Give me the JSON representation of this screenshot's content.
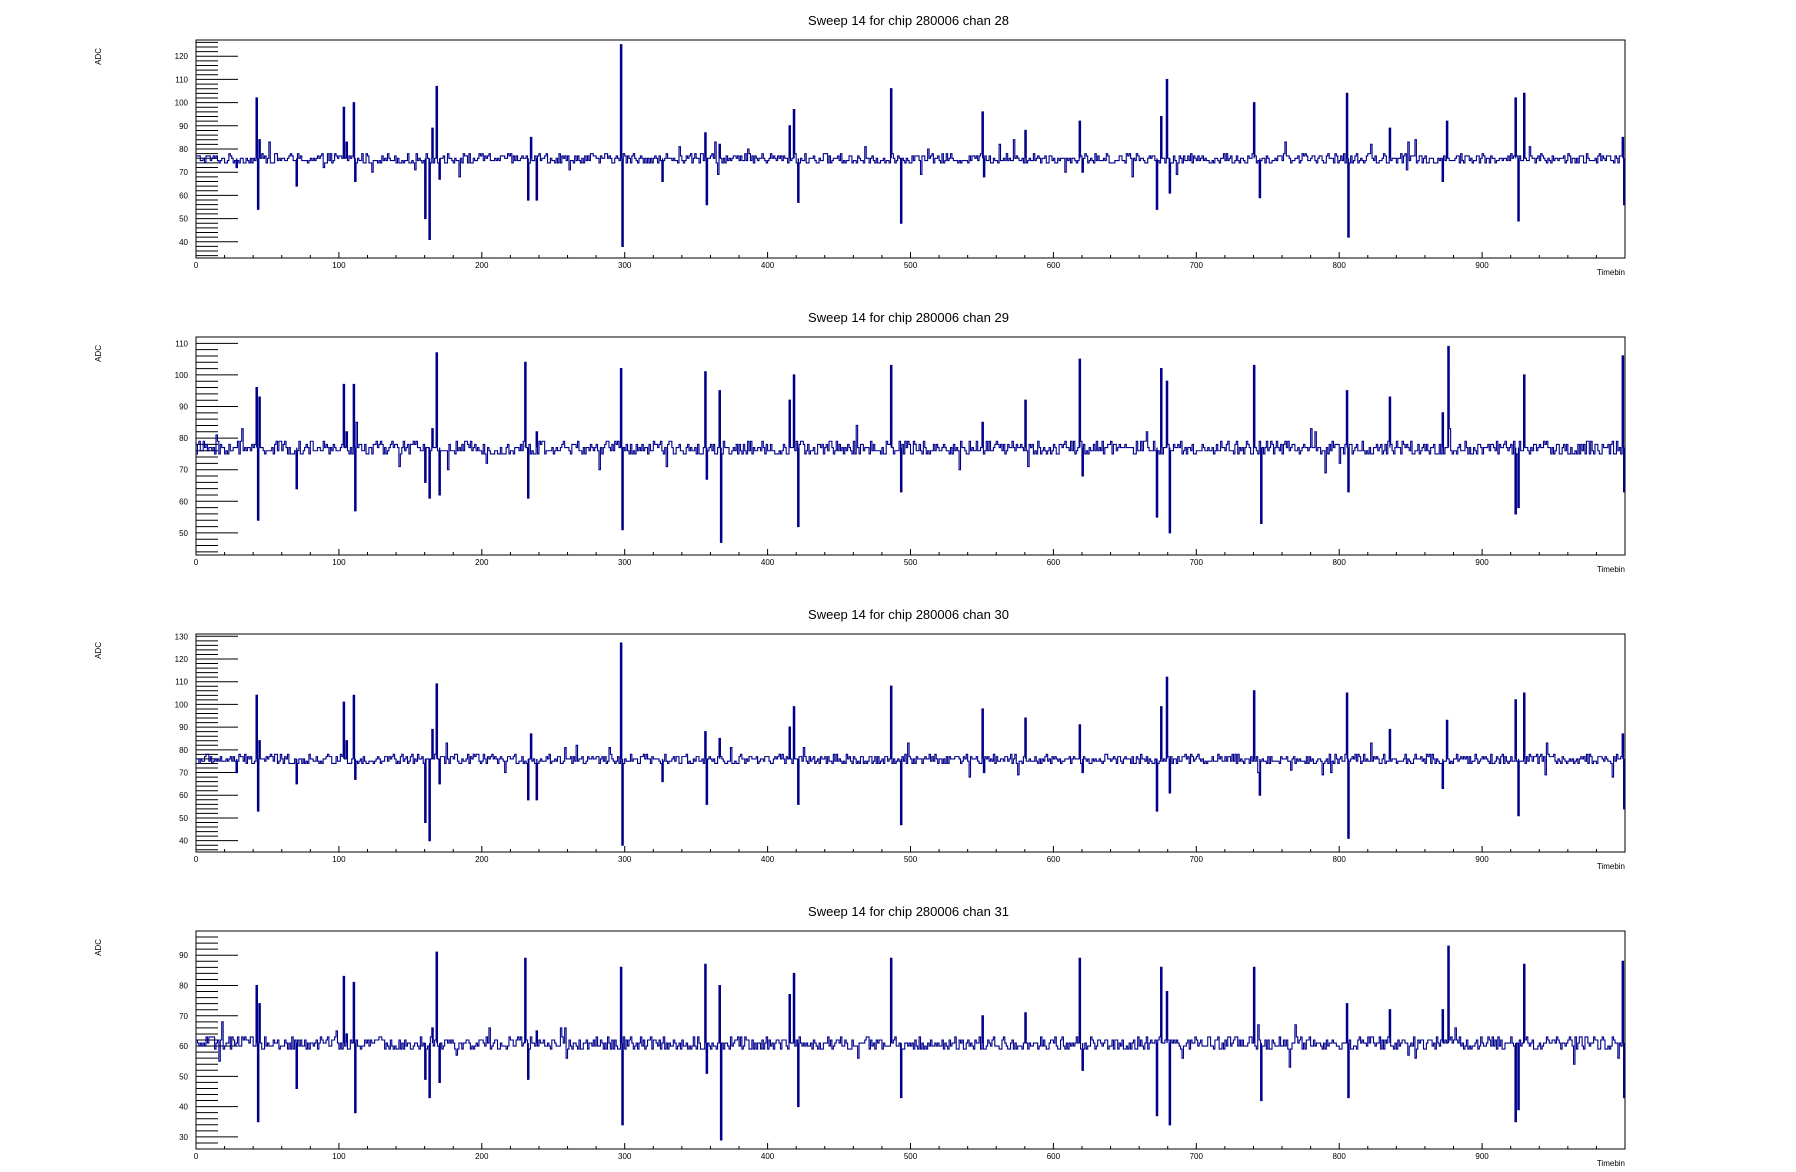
{
  "colors": {
    "trace": "#00008b",
    "frame": "#000000",
    "background": "#ffffff"
  },
  "chart_data": [
    {
      "type": "line",
      "title": "Sweep 14 for chip 280006 chan 28",
      "xlabel": "Timebin",
      "ylabel": "ADC",
      "xlim": [
        0,
        1000
      ],
      "ylim": [
        33,
        127
      ],
      "x_ticks": [
        0,
        100,
        200,
        300,
        400,
        500,
        600,
        700,
        800,
        900
      ],
      "y_ticks": [
        40,
        50,
        60,
        70,
        80,
        90,
        100,
        110,
        120
      ],
      "grid": false,
      "series": [
        {
          "baseline": 76,
          "spikes": [
            [
              28,
              72
            ],
            [
              42,
              102
            ],
            [
              43,
              54
            ],
            [
              44,
              84
            ],
            [
              70,
              64
            ],
            [
              103,
              98
            ],
            [
              105,
              83
            ],
            [
              110,
              100
            ],
            [
              111,
              66
            ],
            [
              160,
              50
            ],
            [
              163,
              41
            ],
            [
              165,
              89
            ],
            [
              168,
              107
            ],
            [
              170,
              67
            ],
            [
              232,
              58
            ],
            [
              234,
              85
            ],
            [
              238,
              58
            ],
            [
              297,
              125
            ],
            [
              298,
              38
            ],
            [
              326,
              66
            ],
            [
              356,
              87
            ],
            [
              357,
              56
            ],
            [
              366,
              82
            ],
            [
              415,
              90
            ],
            [
              418,
              97
            ],
            [
              421,
              57
            ],
            [
              486,
              106
            ],
            [
              493,
              48
            ],
            [
              550,
              96
            ],
            [
              551,
              68
            ],
            [
              580,
              88
            ],
            [
              618,
              92
            ],
            [
              620,
              70
            ],
            [
              672,
              54
            ],
            [
              675,
              94
            ],
            [
              679,
              110
            ],
            [
              681,
              61
            ],
            [
              740,
              100
            ],
            [
              744,
              59
            ],
            [
              805,
              104
            ],
            [
              806,
              42
            ],
            [
              835,
              89
            ],
            [
              872,
              66
            ],
            [
              875,
              92
            ],
            [
              923,
              102
            ],
            [
              925,
              49
            ],
            [
              929,
              104
            ],
            [
              998,
              85
            ],
            [
              999,
              56
            ]
          ]
        }
      ]
    },
    {
      "type": "line",
      "title": "Sweep 14 for chip 280006 chan 29",
      "xlabel": "Timebin",
      "ylabel": "ADC",
      "xlim": [
        0,
        1000
      ],
      "ylim": [
        43,
        112
      ],
      "x_ticks": [
        0,
        100,
        200,
        300,
        400,
        500,
        600,
        700,
        800,
        900
      ],
      "y_ticks": [
        50,
        60,
        70,
        80,
        90,
        100,
        110
      ],
      "grid": false,
      "series": [
        {
          "baseline": 77,
          "spikes": [
            [
              42,
              96
            ],
            [
              43,
              54
            ],
            [
              44,
              93
            ],
            [
              70,
              64
            ],
            [
              103,
              97
            ],
            [
              105,
              82
            ],
            [
              110,
              97
            ],
            [
              111,
              57
            ],
            [
              160,
              66
            ],
            [
              163,
              61
            ],
            [
              165,
              83
            ],
            [
              168,
              107
            ],
            [
              170,
              62
            ],
            [
              230,
              104
            ],
            [
              232,
              61
            ],
            [
              238,
              82
            ],
            [
              297,
              102
            ],
            [
              298,
              51
            ],
            [
              356,
              101
            ],
            [
              357,
              67
            ],
            [
              366,
              95
            ],
            [
              367,
              47
            ],
            [
              415,
              92
            ],
            [
              418,
              100
            ],
            [
              421,
              52
            ],
            [
              486,
              103
            ],
            [
              493,
              63
            ],
            [
              550,
              85
            ],
            [
              580,
              92
            ],
            [
              618,
              105
            ],
            [
              620,
              68
            ],
            [
              672,
              55
            ],
            [
              675,
              102
            ],
            [
              679,
              98
            ],
            [
              681,
              50
            ],
            [
              740,
              103
            ],
            [
              745,
              53
            ],
            [
              805,
              95
            ],
            [
              806,
              63
            ],
            [
              835,
              93
            ],
            [
              872,
              88
            ],
            [
              876,
              109
            ],
            [
              923,
              56
            ],
            [
              925,
              58
            ],
            [
              929,
              100
            ],
            [
              998,
              106
            ],
            [
              999,
              63
            ]
          ]
        }
      ]
    },
    {
      "type": "line",
      "title": "Sweep 14 for chip 280006 chan 30",
      "xlabel": "Timebin",
      "ylabel": "ADC",
      "xlim": [
        0,
        1000
      ],
      "ylim": [
        35,
        131
      ],
      "x_ticks": [
        0,
        100,
        200,
        300,
        400,
        500,
        600,
        700,
        800,
        900
      ],
      "y_ticks": [
        40,
        50,
        60,
        70,
        80,
        90,
        100,
        110,
        120,
        130
      ],
      "grid": false,
      "series": [
        {
          "baseline": 76,
          "spikes": [
            [
              28,
              70
            ],
            [
              42,
              104
            ],
            [
              43,
              53
            ],
            [
              44,
              84
            ],
            [
              70,
              65
            ],
            [
              103,
              101
            ],
            [
              105,
              84
            ],
            [
              110,
              104
            ],
            [
              111,
              67
            ],
            [
              160,
              48
            ],
            [
              163,
              40
            ],
            [
              165,
              89
            ],
            [
              168,
              109
            ],
            [
              170,
              65
            ],
            [
              232,
              58
            ],
            [
              234,
              87
            ],
            [
              238,
              58
            ],
            [
              297,
              127
            ],
            [
              298,
              38
            ],
            [
              326,
              66
            ],
            [
              356,
              88
            ],
            [
              357,
              56
            ],
            [
              366,
              85
            ],
            [
              415,
              90
            ],
            [
              418,
              99
            ],
            [
              421,
              56
            ],
            [
              486,
              108
            ],
            [
              493,
              47
            ],
            [
              550,
              98
            ],
            [
              551,
              70
            ],
            [
              580,
              94
            ],
            [
              618,
              91
            ],
            [
              620,
              70
            ],
            [
              672,
              53
            ],
            [
              675,
              99
            ],
            [
              679,
              112
            ],
            [
              681,
              61
            ],
            [
              740,
              106
            ],
            [
              744,
              60
            ],
            [
              805,
              105
            ],
            [
              806,
              41
            ],
            [
              835,
              89
            ],
            [
              872,
              63
            ],
            [
              875,
              93
            ],
            [
              923,
              102
            ],
            [
              925,
              51
            ],
            [
              929,
              105
            ],
            [
              998,
              87
            ],
            [
              999,
              54
            ]
          ]
        }
      ]
    },
    {
      "type": "line",
      "title": "Sweep 14 for chip 280006 chan 31",
      "xlabel": "Timebin",
      "ylabel": "ADC",
      "xlim": [
        0,
        1000
      ],
      "ylim": [
        26,
        98
      ],
      "x_ticks": [
        0,
        100,
        200,
        300,
        400,
        500,
        600,
        700,
        800,
        900
      ],
      "y_ticks": [
        30,
        40,
        50,
        60,
        70,
        80,
        90
      ],
      "grid": false,
      "series": [
        {
          "baseline": 61,
          "spikes": [
            [
              42,
              80
            ],
            [
              43,
              35
            ],
            [
              44,
              74
            ],
            [
              70,
              46
            ],
            [
              103,
              83
            ],
            [
              105,
              64
            ],
            [
              110,
              81
            ],
            [
              111,
              38
            ],
            [
              160,
              49
            ],
            [
              163,
              43
            ],
            [
              165,
              66
            ],
            [
              168,
              91
            ],
            [
              170,
              48
            ],
            [
              230,
              89
            ],
            [
              232,
              49
            ],
            [
              238,
              65
            ],
            [
              297,
              86
            ],
            [
              298,
              34
            ],
            [
              356,
              87
            ],
            [
              357,
              51
            ],
            [
              366,
              80
            ],
            [
              367,
              29
            ],
            [
              415,
              77
            ],
            [
              418,
              84
            ],
            [
              421,
              40
            ],
            [
              486,
              89
            ],
            [
              493,
              43
            ],
            [
              550,
              70
            ],
            [
              580,
              71
            ],
            [
              618,
              89
            ],
            [
              620,
              52
            ],
            [
              672,
              37
            ],
            [
              675,
              86
            ],
            [
              679,
              78
            ],
            [
              681,
              34
            ],
            [
              740,
              86
            ],
            [
              745,
              42
            ],
            [
              805,
              74
            ],
            [
              806,
              43
            ],
            [
              835,
              72
            ],
            [
              872,
              72
            ],
            [
              876,
              93
            ],
            [
              923,
              35
            ],
            [
              925,
              39
            ],
            [
              929,
              87
            ],
            [
              998,
              88
            ],
            [
              999,
              43
            ]
          ]
        }
      ]
    }
  ]
}
